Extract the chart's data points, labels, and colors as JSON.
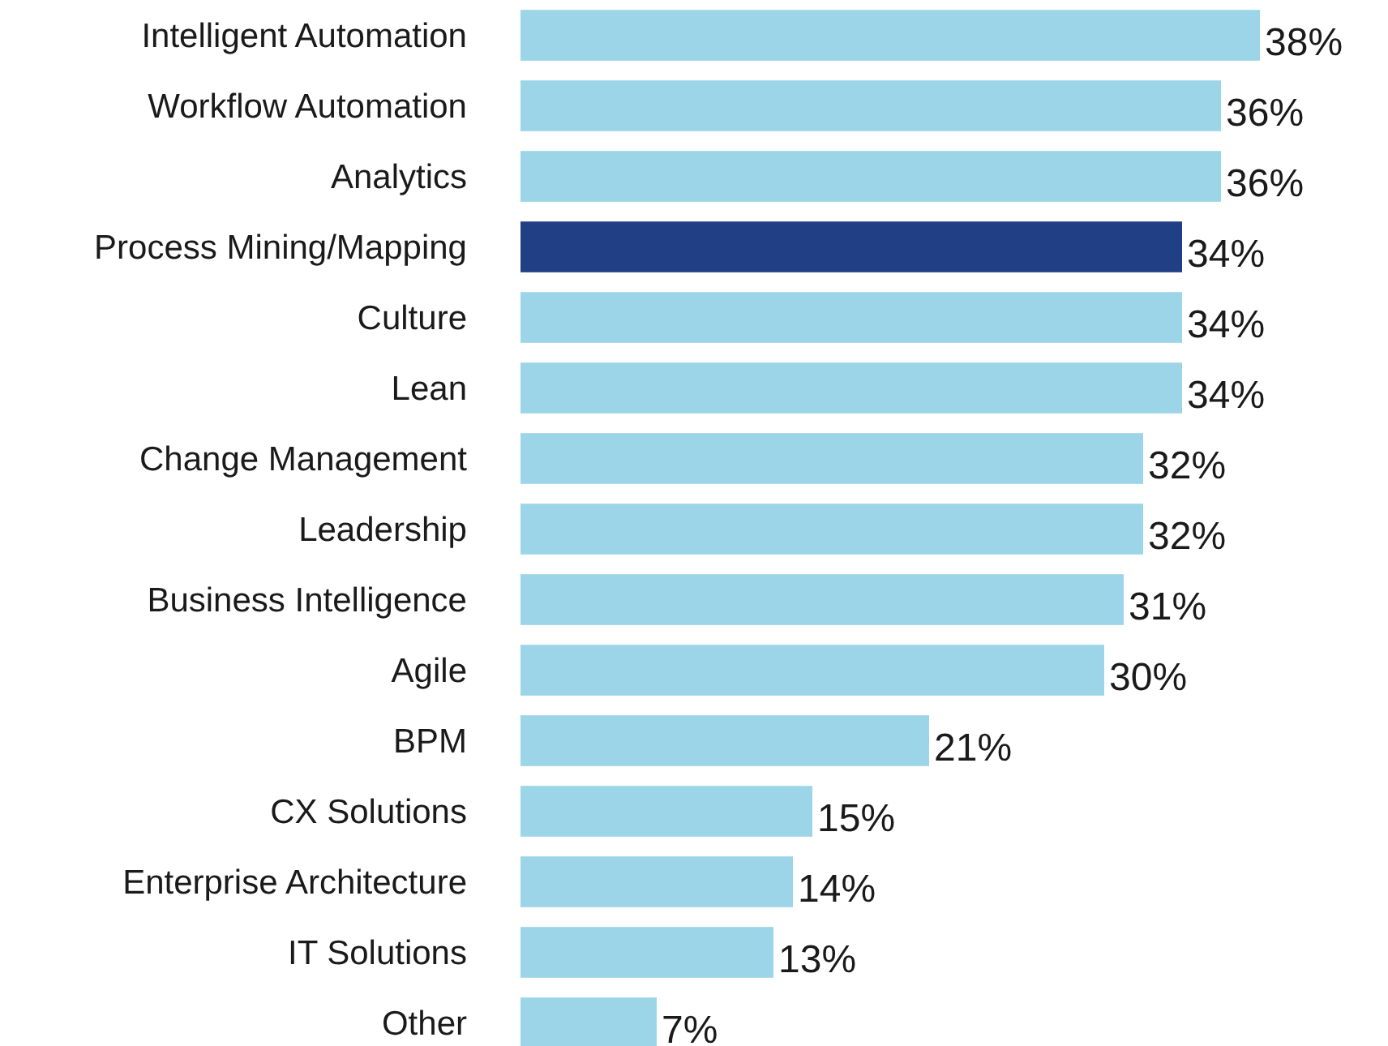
{
  "chart_data": {
    "type": "bar",
    "orientation": "horizontal",
    "tick_labels": "y",
    "categories": [
      "Intelligent Automation",
      "Workflow Automation",
      "Analytics",
      "Process Mining/Mapping",
      "Culture",
      "Lean",
      "Change Management",
      "Leadership",
      "Business Intelligence",
      "Agile",
      "BPM",
      "CX Solutions",
      "Enterprise Architecture",
      "IT Solutions",
      "Other"
    ],
    "values": [
      38,
      36,
      36,
      34,
      34,
      34,
      32,
      32,
      31,
      30,
      21,
      15,
      14,
      13,
      7
    ],
    "colors": [
      "#9dd5e8",
      "#9dd5e8",
      "#9dd5e8",
      "#203f85",
      "#9dd5e8",
      "#9dd5e8",
      "#9dd5e8",
      "#9dd5e8",
      "#9dd5e8",
      "#9dd5e8",
      "#9dd5e8",
      "#9dd5e8",
      "#9dd5e8",
      "#9dd5e8",
      "#9dd5e8"
    ],
    "value_labels": [
      "38%",
      "36%",
      "36%",
      "34%",
      "34%",
      "34%",
      "32%",
      "32%",
      "31%",
      "30%",
      "21%",
      "15%",
      "14%",
      "13%",
      "7%"
    ]
  }
}
